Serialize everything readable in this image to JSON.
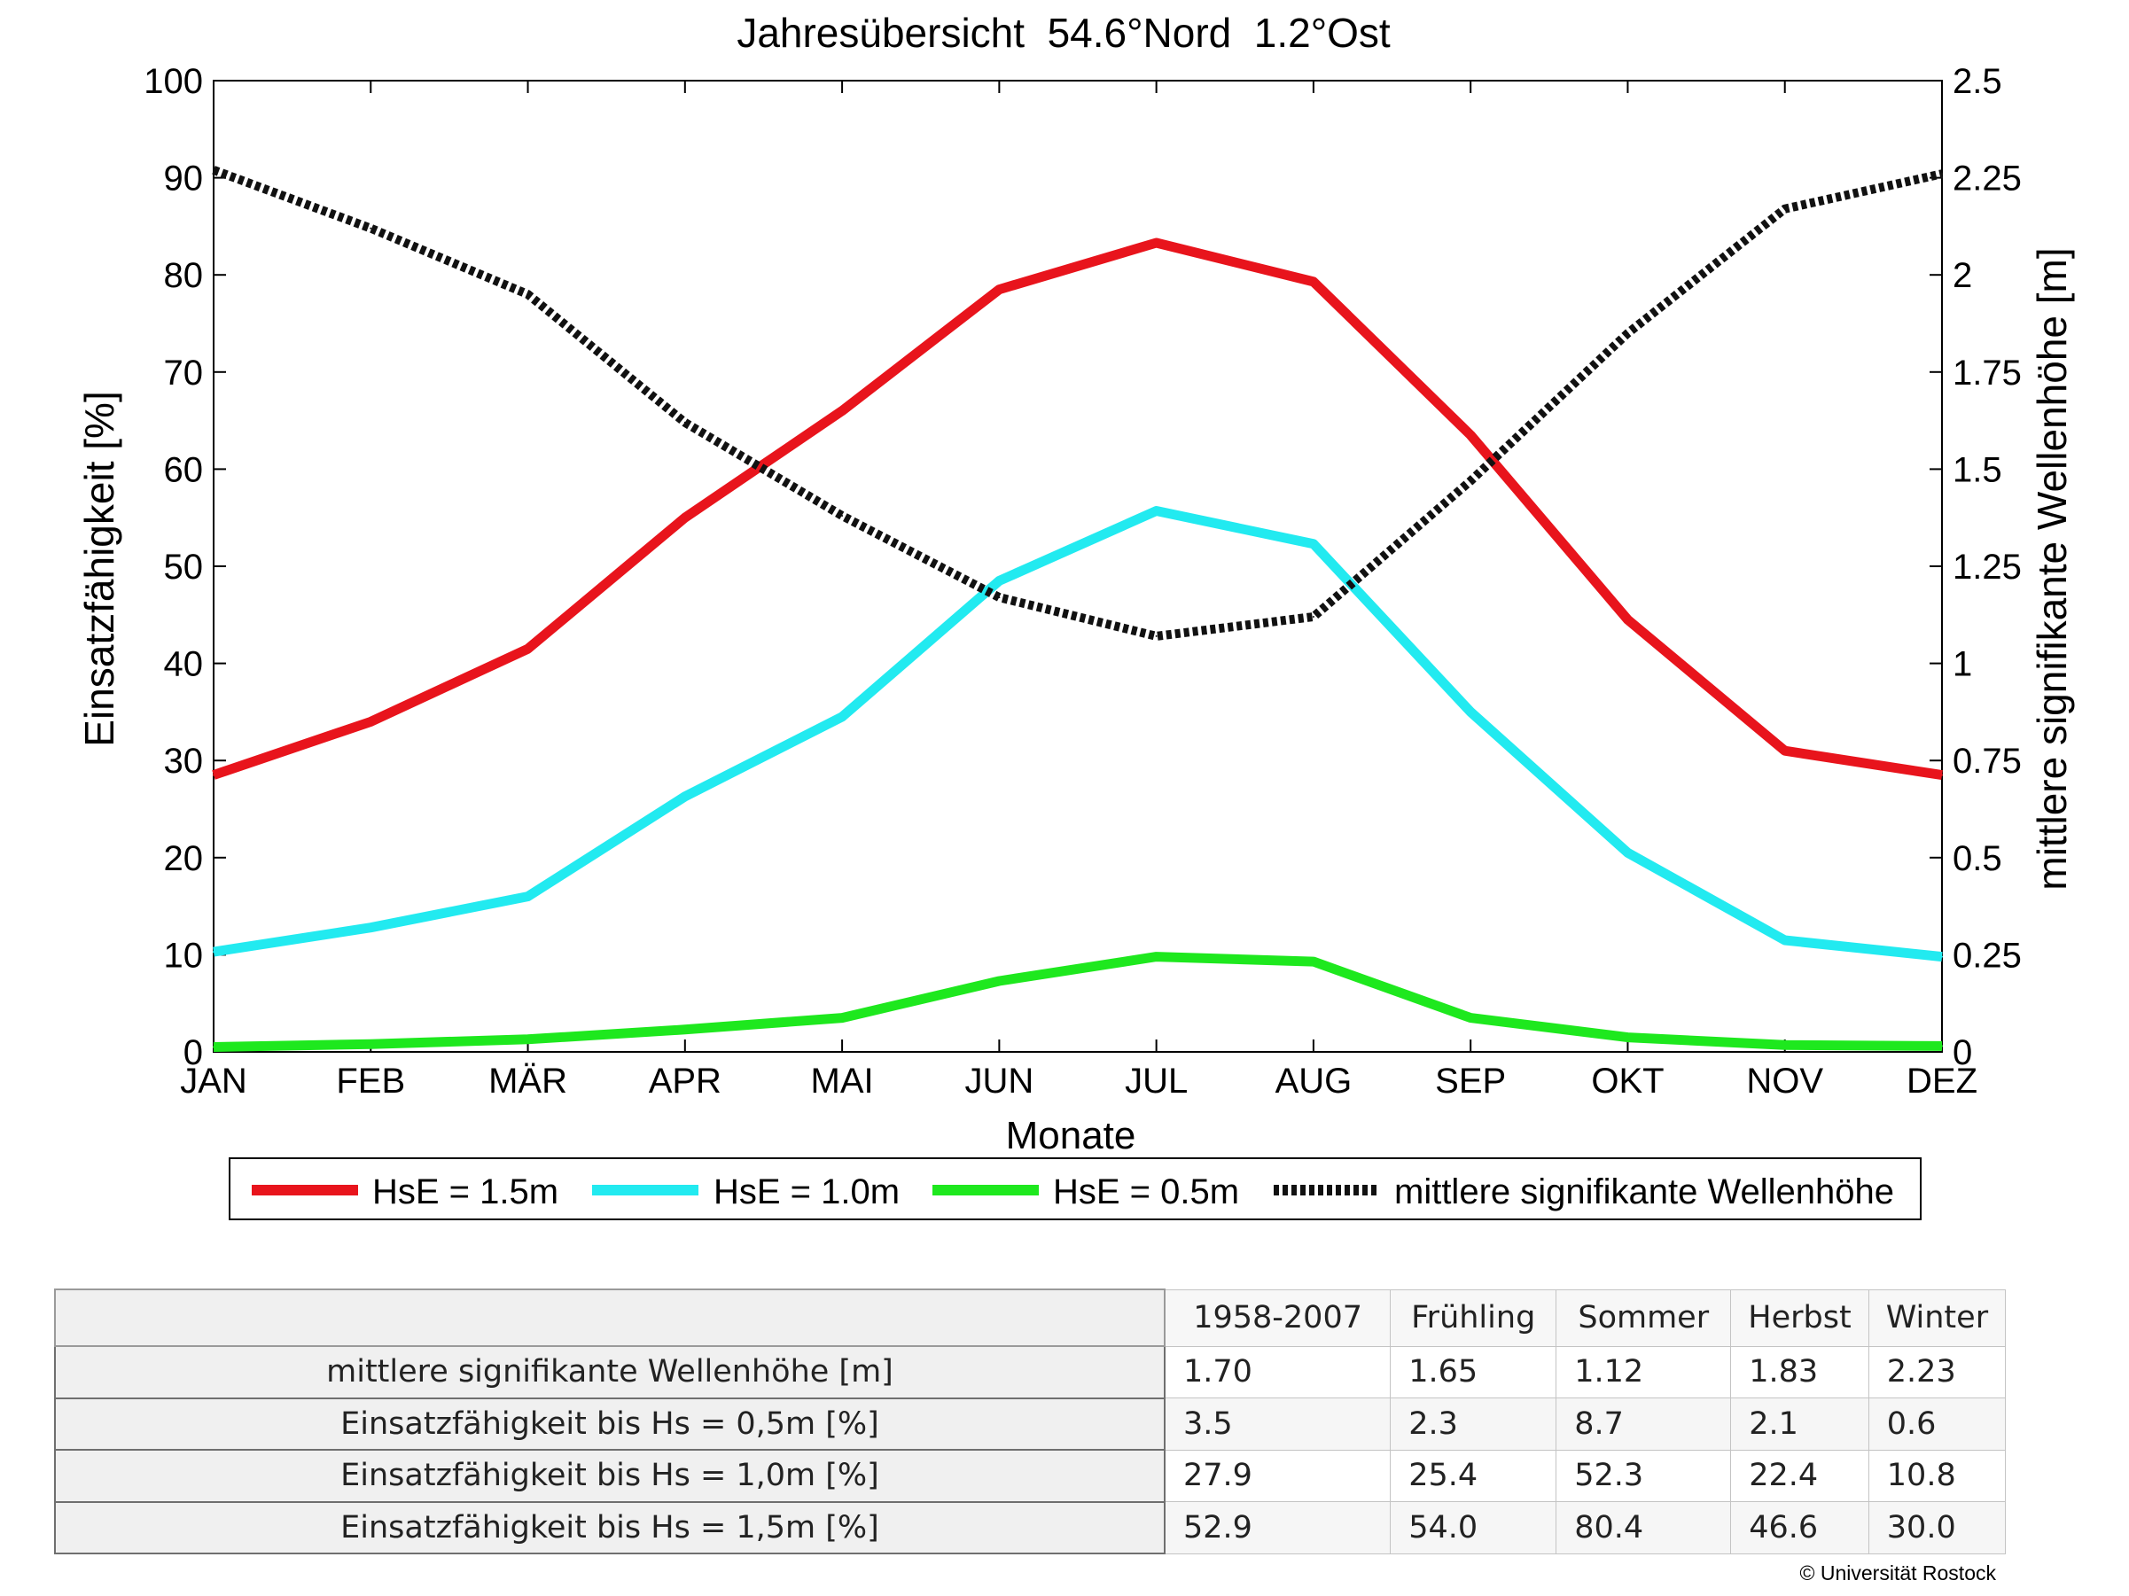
{
  "chart_data": {
    "type": "line",
    "title": "Jahresübersicht  54.6°Nord  1.2°Ost",
    "xlabel": "Monate",
    "ylabel": "Einsatzfähigkeit [%]",
    "y2label": "mittlere signifikante Wellenhöhe [m]",
    "categories": [
      "JAN",
      "FEB",
      "MÄR",
      "APR",
      "MAI",
      "JUN",
      "JUL",
      "AUG",
      "SEP",
      "OKT",
      "NOV",
      "DEZ"
    ],
    "ylim": [
      0,
      100
    ],
    "yticks": [
      "0",
      "10",
      "20",
      "30",
      "40",
      "50",
      "60",
      "70",
      "80",
      "90",
      "100"
    ],
    "y2lim": [
      0,
      2.5
    ],
    "y2ticks": [
      "0",
      "0.25",
      "0.5",
      "0.75",
      "1",
      "1.25",
      "1.5",
      "1.75",
      "2",
      "2.25",
      "2.5"
    ],
    "grid": "vertical ticks only",
    "legend_position": "bottom",
    "series": [
      {
        "name": "HsE = 1.5m",
        "axis": "left",
        "color": "#e8141c",
        "style": "solid",
        "values": [
          28.5,
          34,
          41.5,
          55,
          66,
          78.5,
          83.3,
          79.3,
          63.5,
          44.5,
          31,
          28.5
        ]
      },
      {
        "name": "HsE = 1.0m",
        "axis": "left",
        "color": "#22eaf0",
        "style": "solid",
        "values": [
          10.3,
          12.8,
          16,
          26.3,
          34.5,
          48.5,
          55.7,
          52.3,
          35,
          20.5,
          11.5,
          9.8
        ]
      },
      {
        "name": "HsE = 0.5m",
        "axis": "left",
        "color": "#1ee81e",
        "style": "solid",
        "values": [
          0.5,
          0.8,
          1.3,
          2.3,
          3.5,
          7.3,
          9.8,
          9.3,
          3.5,
          1.5,
          0.7,
          0.6
        ]
      },
      {
        "name": "mittlere signifikante Wellenhöhe",
        "axis": "right",
        "color": "#111111",
        "style": "dotted",
        "values": [
          2.27,
          2.12,
          1.95,
          1.62,
          1.38,
          1.17,
          1.07,
          1.12,
          1.47,
          1.85,
          2.17,
          2.26
        ]
      }
    ]
  },
  "table": {
    "columns": [
      "1958-2007",
      "Frühling",
      "Sommer",
      "Herbst",
      "Winter"
    ],
    "rows": [
      {
        "label": "mittlere signifikante Wellenhöhe [m]",
        "values": [
          "1.70",
          "1.65",
          "1.12",
          "1.83",
          "2.23"
        ]
      },
      {
        "label": "Einsatzfähigkeit bis Hs = 0,5m [%]",
        "values": [
          "3.5",
          "2.3",
          "8.7",
          "2.1",
          "0.6"
        ]
      },
      {
        "label": "Einsatzfähigkeit bis Hs = 1,0m [%]",
        "values": [
          "27.9",
          "25.4",
          "52.3",
          "22.4",
          "10.8"
        ]
      },
      {
        "label": "Einsatzfähigkeit bis Hs = 1,5m [%]",
        "values": [
          "52.9",
          "54.0",
          "80.4",
          "46.6",
          "30.0"
        ]
      }
    ]
  },
  "copyright": "© Universität Rostock"
}
